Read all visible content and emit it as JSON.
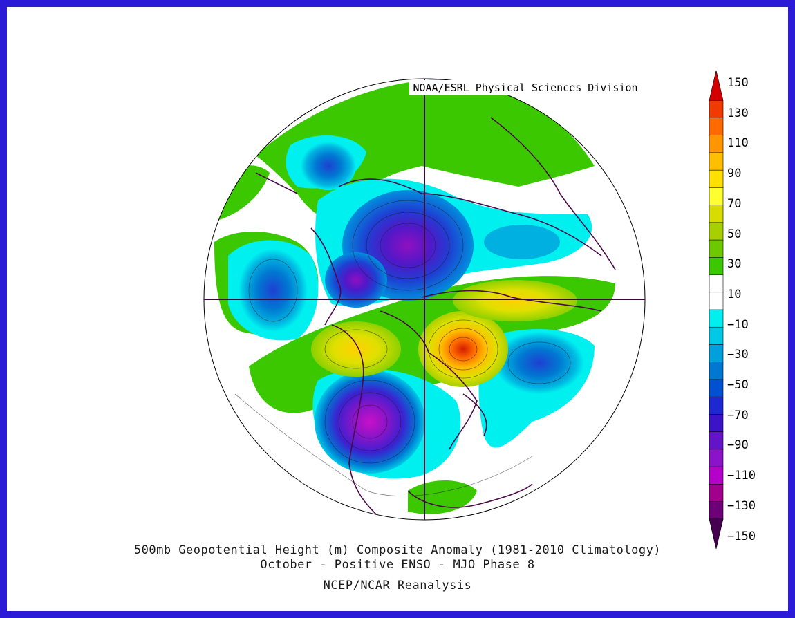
{
  "credit": "NOAA/ESRL Physical Sciences Division",
  "caption": {
    "line1": "500mb Geopotential Height (m) Composite Anomaly (1981-2010 Climatology)",
    "line2": "October - Positive ENSO - MJO Phase 8",
    "line3": "NCEP/NCAR Reanalysis"
  },
  "colorbar": {
    "labels": [
      "150",
      "130",
      "110",
      "90",
      "70",
      "50",
      "30",
      "10",
      "-10",
      "-30",
      "-50",
      "-70",
      "-90",
      "-110",
      "-130",
      "-150"
    ],
    "colors": [
      "#d20000",
      "#f03a00",
      "#ff6a00",
      "#ff9600",
      "#ffbe00",
      "#ffe000",
      "#ffff30",
      "#d8dc00",
      "#a8d000",
      "#6ec800",
      "#3cc800",
      "#ffffff",
      "#ffffff",
      "#00f0f0",
      "#00c8e6",
      "#00a0dc",
      "#0078d2",
      "#0050d2",
      "#1e28d2",
      "#3c14c8",
      "#6414c8",
      "#8c14c8",
      "#b400c8",
      "#a0008c",
      "#6e0078",
      "#460050"
    ]
  }
}
